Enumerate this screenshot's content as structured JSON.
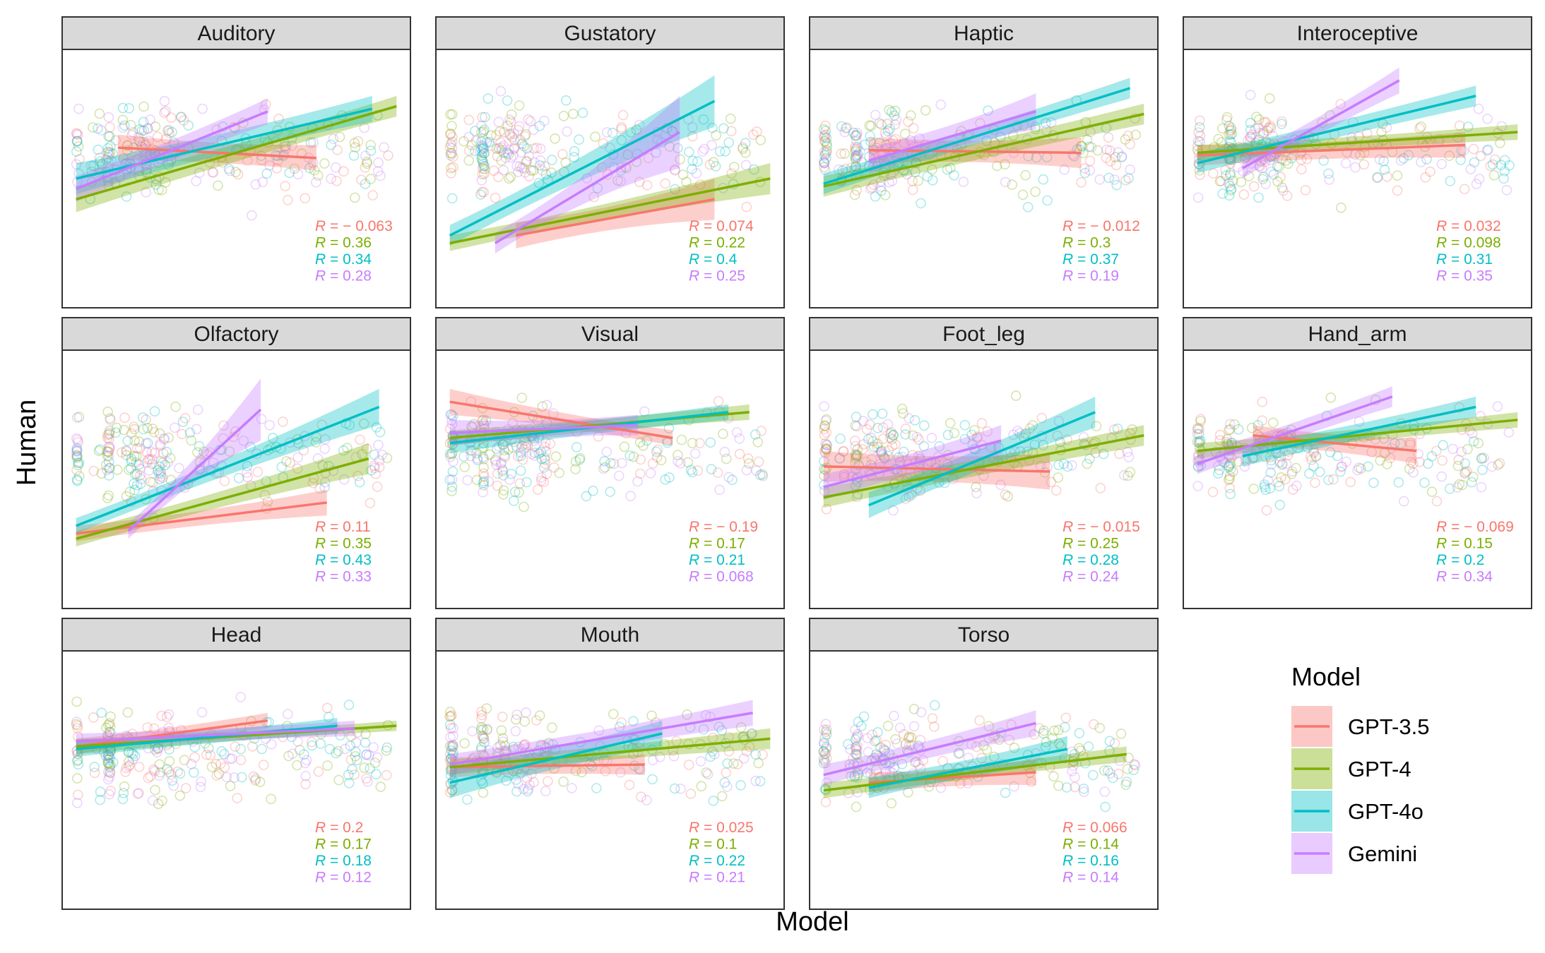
{
  "figure": {
    "xlabel": "Model",
    "ylabel": "Human",
    "legend": {
      "title": "Model",
      "position": "bottom-right",
      "entries": [
        {
          "name": "GPT-3.5",
          "color": "#F8766D"
        },
        {
          "name": "GPT-4",
          "color": "#7CAE00"
        },
        {
          "name": "GPT-4o",
          "color": "#00BFC4"
        },
        {
          "name": "Gemini",
          "color": "#C77CFF"
        }
      ]
    }
  },
  "chart_data": [
    {
      "type": "scatter",
      "title": "Auditory",
      "grid": false,
      "series": [
        {
          "name": "GPT-3.5",
          "r_label": "R = − 0.063",
          "fit": {
            "x": [
              0.16,
              0.73
            ],
            "y": [
              0.62,
              0.58
            ],
            "band": [
              0.05,
              0.05
            ]
          }
        },
        {
          "name": "GPT-4",
          "r_label": "R = 0.36",
          "fit": {
            "x": [
              0.04,
              0.96
            ],
            "y": [
              0.42,
              0.78
            ],
            "band": [
              0.05,
              0.04
            ]
          }
        },
        {
          "name": "GPT-4o",
          "r_label": "R = 0.34",
          "fit": {
            "x": [
              0.04,
              0.89
            ],
            "y": [
              0.5,
              0.77
            ],
            "band": [
              0.06,
              0.05
            ]
          }
        },
        {
          "name": "Gemini",
          "r_label": "R = 0.28",
          "fit": {
            "x": [
              0.04,
              0.59
            ],
            "y": [
              0.46,
              0.76
            ],
            "band": [
              0.05,
              0.05
            ]
          }
        }
      ]
    },
    {
      "type": "scatter",
      "title": "Gustatory",
      "grid": false,
      "series": [
        {
          "name": "GPT-3.5",
          "r_label": "R = 0.074",
          "fit": {
            "x": [
              0.23,
              0.8
            ],
            "y": [
              0.28,
              0.42
            ],
            "band": [
              0.05,
              0.08
            ]
          }
        },
        {
          "name": "GPT-4",
          "r_label": "R = 0.22",
          "fit": {
            "x": [
              0.04,
              0.96
            ],
            "y": [
              0.25,
              0.5
            ],
            "band": [
              0.03,
              0.06
            ]
          }
        },
        {
          "name": "GPT-4o",
          "r_label": "R = 0.4",
          "fit": {
            "x": [
              0.04,
              0.8
            ],
            "y": [
              0.28,
              0.8
            ],
            "band": [
              0.04,
              0.1
            ]
          }
        },
        {
          "name": "Gemini",
          "r_label": "R = 0.25",
          "fit": {
            "x": [
              0.17,
              0.7
            ],
            "y": [
              0.25,
              0.68
            ],
            "band": [
              0.04,
              0.14
            ]
          }
        }
      ]
    },
    {
      "type": "scatter",
      "title": "Haptic",
      "grid": false,
      "series": [
        {
          "name": "GPT-3.5",
          "r_label": "R = − 0.012",
          "fit": {
            "x": [
              0.17,
              0.78
            ],
            "y": [
              0.61,
              0.6
            ],
            "band": [
              0.05,
              0.06
            ]
          }
        },
        {
          "name": "GPT-4",
          "r_label": "R = 0.3",
          "fit": {
            "x": [
              0.04,
              0.96
            ],
            "y": [
              0.47,
              0.75
            ],
            "band": [
              0.04,
              0.04
            ]
          }
        },
        {
          "name": "GPT-4o",
          "r_label": "R = 0.37",
          "fit": {
            "x": [
              0.04,
              0.92
            ],
            "y": [
              0.48,
              0.85
            ],
            "band": [
              0.04,
              0.04
            ]
          }
        },
        {
          "name": "Gemini",
          "r_label": "R = 0.19",
          "fit": {
            "x": [
              0.17,
              0.65
            ],
            "y": [
              0.57,
              0.76
            ],
            "band": [
              0.05,
              0.07
            ]
          }
        }
      ]
    },
    {
      "type": "scatter",
      "title": "Interoceptive",
      "grid": false,
      "series": [
        {
          "name": "GPT-3.5",
          "r_label": "R = 0.032",
          "fit": {
            "x": [
              0.04,
              0.81
            ],
            "y": [
              0.59,
              0.63
            ],
            "band": [
              0.04,
              0.05
            ]
          }
        },
        {
          "name": "GPT-4",
          "r_label": "R = 0.098",
          "fit": {
            "x": [
              0.04,
              0.96
            ],
            "y": [
              0.6,
              0.68
            ],
            "band": [
              0.03,
              0.03
            ]
          }
        },
        {
          "name": "GPT-4o",
          "r_label": "R = 0.31",
          "fit": {
            "x": [
              0.04,
              0.84
            ],
            "y": [
              0.56,
              0.82
            ],
            "band": [
              0.04,
              0.04
            ]
          }
        },
        {
          "name": "Gemini",
          "r_label": "R = 0.35",
          "fit": {
            "x": [
              0.17,
              0.62
            ],
            "y": [
              0.54,
              0.88
            ],
            "band": [
              0.04,
              0.05
            ]
          }
        }
      ]
    },
    {
      "type": "scatter",
      "title": "Olfactory",
      "grid": false,
      "series": [
        {
          "name": "GPT-3.5",
          "r_label": "R = 0.11",
          "fit": {
            "x": [
              0.04,
              0.76
            ],
            "y": [
              0.29,
              0.41
            ],
            "band": [
              0.03,
              0.05
            ]
          }
        },
        {
          "name": "GPT-4",
          "r_label": "R = 0.35",
          "fit": {
            "x": [
              0.04,
              0.88
            ],
            "y": [
              0.27,
              0.58
            ],
            "band": [
              0.03,
              0.06
            ]
          }
        },
        {
          "name": "GPT-4o",
          "r_label": "R = 0.43",
          "fit": {
            "x": [
              0.04,
              0.91
            ],
            "y": [
              0.32,
              0.78
            ],
            "band": [
              0.03,
              0.07
            ]
          }
        },
        {
          "name": "Gemini",
          "r_label": "R = 0.33",
          "fit": {
            "x": [
              0.19,
              0.57
            ],
            "y": [
              0.3,
              0.77
            ],
            "band": [
              0.03,
              0.12
            ]
          }
        }
      ]
    },
    {
      "type": "scatter",
      "title": "Visual",
      "grid": false,
      "series": [
        {
          "name": "GPT-3.5",
          "r_label": "R = − 0.19",
          "fit": {
            "x": [
              0.04,
              0.68
            ],
            "y": [
              0.8,
              0.66
            ],
            "band": [
              0.05,
              0.03
            ]
          }
        },
        {
          "name": "GPT-4",
          "r_label": "R = 0.17",
          "fit": {
            "x": [
              0.04,
              0.9
            ],
            "y": [
              0.66,
              0.76
            ],
            "band": [
              0.03,
              0.03
            ]
          }
        },
        {
          "name": "GPT-4o",
          "r_label": "R = 0.21",
          "fit": {
            "x": [
              0.04,
              0.84
            ],
            "y": [
              0.64,
              0.76
            ],
            "band": [
              0.04,
              0.03
            ]
          }
        },
        {
          "name": "Gemini",
          "r_label": "R = 0.068",
          "fit": {
            "x": [
              0.04,
              0.58
            ],
            "y": [
              0.68,
              0.71
            ],
            "band": [
              0.05,
              0.04
            ]
          }
        }
      ]
    },
    {
      "type": "scatter",
      "title": "Foot_leg",
      "grid": false,
      "series": [
        {
          "name": "GPT-3.5",
          "r_label": "R = − 0.015",
          "fit": {
            "x": [
              0.04,
              0.69
            ],
            "y": [
              0.55,
              0.53
            ],
            "band": [
              0.06,
              0.07
            ]
          }
        },
        {
          "name": "GPT-4",
          "r_label": "R = 0.25",
          "fit": {
            "x": [
              0.04,
              0.96
            ],
            "y": [
              0.43,
              0.67
            ],
            "band": [
              0.04,
              0.04
            ]
          }
        },
        {
          "name": "GPT-4o",
          "r_label": "R = 0.28",
          "fit": {
            "x": [
              0.17,
              0.82
            ],
            "y": [
              0.4,
              0.76
            ],
            "band": [
              0.05,
              0.06
            ]
          }
        },
        {
          "name": "Gemini",
          "r_label": "R = 0.24",
          "fit": {
            "x": [
              0.04,
              0.55
            ],
            "y": [
              0.47,
              0.65
            ],
            "band": [
              0.05,
              0.06
            ]
          }
        }
      ]
    },
    {
      "type": "scatter",
      "title": "Hand_arm",
      "grid": false,
      "series": [
        {
          "name": "GPT-3.5",
          "r_label": "R = − 0.069",
          "fit": {
            "x": [
              0.2,
              0.67
            ],
            "y": [
              0.67,
              0.61
            ],
            "band": [
              0.04,
              0.05
            ]
          }
        },
        {
          "name": "GPT-4",
          "r_label": "R = 0.15",
          "fit": {
            "x": [
              0.04,
              0.96
            ],
            "y": [
              0.61,
              0.73
            ],
            "band": [
              0.03,
              0.03
            ]
          }
        },
        {
          "name": "GPT-4o",
          "r_label": "R = 0.2",
          "fit": {
            "x": [
              0.17,
              0.84
            ],
            "y": [
              0.59,
              0.78
            ],
            "band": [
              0.04,
              0.04
            ]
          }
        },
        {
          "name": "Gemini",
          "r_label": "R = 0.34",
          "fit": {
            "x": [
              0.04,
              0.6
            ],
            "y": [
              0.56,
              0.82
            ],
            "band": [
              0.04,
              0.04
            ]
          }
        }
      ]
    },
    {
      "type": "scatter",
      "title": "Head",
      "grid": false,
      "series": [
        {
          "name": "GPT-3.5",
          "r_label": "R = 0.2",
          "fit": {
            "x": [
              0.04,
              0.59
            ],
            "y": [
              0.63,
              0.73
            ],
            "band": [
              0.03,
              0.03
            ]
          }
        },
        {
          "name": "GPT-4",
          "r_label": "R = 0.17",
          "fit": {
            "x": [
              0.04,
              0.96
            ],
            "y": [
              0.63,
              0.71
            ],
            "band": [
              0.03,
              0.02
            ]
          }
        },
        {
          "name": "GPT-4o",
          "r_label": "R = 0.18",
          "fit": {
            "x": [
              0.04,
              0.79
            ],
            "y": [
              0.62,
              0.71
            ],
            "band": [
              0.03,
              0.03
            ]
          }
        },
        {
          "name": "Gemini",
          "r_label": "R = 0.12",
          "fit": {
            "x": [
              0.04,
              0.84
            ],
            "y": [
              0.65,
              0.7
            ],
            "band": [
              0.03,
              0.03
            ]
          }
        }
      ]
    },
    {
      "type": "scatter",
      "title": "Mouth",
      "grid": false,
      "series": [
        {
          "name": "GPT-3.5",
          "r_label": "R = 0.025",
          "fit": {
            "x": [
              0.04,
              0.6
            ],
            "y": [
              0.55,
              0.56
            ],
            "band": [
              0.04,
              0.04
            ]
          }
        },
        {
          "name": "GPT-4",
          "r_label": "R = 0.1",
          "fit": {
            "x": [
              0.04,
              0.96
            ],
            "y": [
              0.55,
              0.66
            ],
            "band": [
              0.03,
              0.04
            ]
          }
        },
        {
          "name": "GPT-4o",
          "r_label": "R = 0.22",
          "fit": {
            "x": [
              0.04,
              0.65
            ],
            "y": [
              0.49,
              0.68
            ],
            "band": [
              0.06,
              0.05
            ]
          }
        },
        {
          "name": "Gemini",
          "r_label": "R = 0.21",
          "fit": {
            "x": [
              0.04,
              0.91
            ],
            "y": [
              0.56,
              0.76
            ],
            "band": [
              0.04,
              0.05
            ]
          }
        }
      ]
    },
    {
      "type": "scatter",
      "title": "Torso",
      "grid": false,
      "series": [
        {
          "name": "GPT-3.5",
          "r_label": "R = 0.066",
          "fit": {
            "x": [
              0.17,
              0.65
            ],
            "y": [
              0.49,
              0.53
            ],
            "band": [
              0.04,
              0.05
            ]
          }
        },
        {
          "name": "GPT-4",
          "r_label": "R = 0.14",
          "fit": {
            "x": [
              0.04,
              0.91
            ],
            "y": [
              0.46,
              0.6
            ],
            "band": [
              0.03,
              0.03
            ]
          }
        },
        {
          "name": "GPT-4o",
          "r_label": "R = 0.16",
          "fit": {
            "x": [
              0.17,
              0.74
            ],
            "y": [
              0.47,
              0.62
            ],
            "band": [
              0.04,
              0.05
            ]
          }
        },
        {
          "name": "Gemini",
          "r_label": "R = 0.14",
          "fit": {
            "x": [
              0.04,
              0.65
            ],
            "y": [
              0.52,
              0.72
            ],
            "band": [
              0.04,
              0.05
            ]
          }
        }
      ]
    }
  ]
}
